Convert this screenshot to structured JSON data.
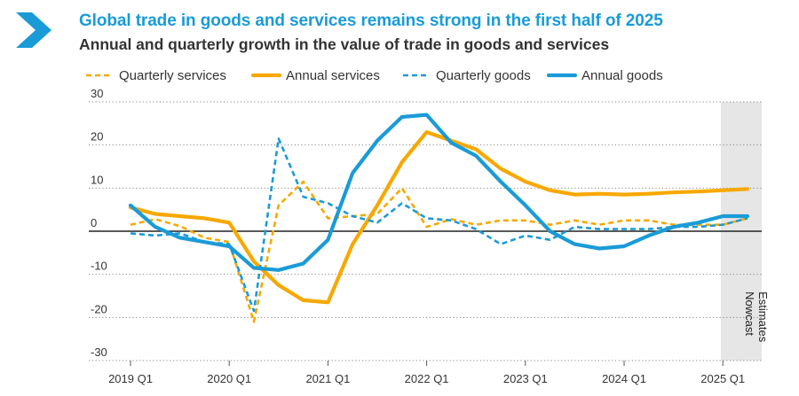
{
  "header": {
    "title": "Global trade in goods and services remains strong in the first half of 2025",
    "subtitle": "Annual and quarterly growth in the value of trade in goods and services"
  },
  "chart_data": {
    "type": "line",
    "title": "Global trade in goods and services remains strong in the first half of 2025",
    "subtitle": "Annual and quarterly growth in the value of trade in goods and services",
    "xlabel": "",
    "ylabel": "",
    "ylim": [
      -30,
      30
    ],
    "yticks": [
      30,
      20,
      10,
      0,
      -10,
      -20,
      -30
    ],
    "xtick_labels": [
      "2019 Q1",
      "2020 Q1",
      "2021 Q1",
      "2022 Q1",
      "2023 Q1",
      "2024 Q1",
      "2025 Q1"
    ],
    "x": [
      "2019 Q1",
      "2019 Q2",
      "2019 Q3",
      "2019 Q4",
      "2020 Q1",
      "2020 Q2",
      "2020 Q3",
      "2020 Q4",
      "2021 Q1",
      "2021 Q2",
      "2021 Q3",
      "2021 Q4",
      "2022 Q1",
      "2022 Q2",
      "2022 Q3",
      "2022 Q4",
      "2023 Q1",
      "2023 Q2",
      "2023 Q3",
      "2023 Q4",
      "2024 Q1",
      "2024 Q2",
      "2024 Q3",
      "2024 Q4",
      "2025 Q1",
      "2025 Q2"
    ],
    "grid": true,
    "legend_position": "top",
    "nowcast_label": "Nowcast Estimates",
    "colors": {
      "services": "#f7a800",
      "goods": "#1a9bd7",
      "zero_line": "#222222"
    },
    "series": [
      {
        "name": "Quarterly services",
        "style": "dashed",
        "color": "#f7a800",
        "values": [
          1.5,
          2.8,
          1.2,
          -1.5,
          -2.5,
          -21,
          6,
          11.5,
          3,
          3.5,
          4,
          10,
          1,
          2.8,
          1.5,
          2.5,
          2.5,
          1.5,
          2.5,
          1.5,
          2.5,
          2.5,
          1.5,
          1.5,
          1.5,
          3
        ]
      },
      {
        "name": "Annual services",
        "style": "solid",
        "color": "#f7a800",
        "values": [
          5.5,
          4,
          3.5,
          3,
          2,
          -7,
          -12.5,
          -16,
          -16.5,
          -3,
          6,
          16,
          23,
          21,
          19,
          14.5,
          11.5,
          9.5,
          8.5,
          8.7,
          8.5,
          8.7,
          9,
          9.2,
          9.5,
          9.8
        ]
      },
      {
        "name": "Quarterly goods",
        "style": "dashed",
        "color": "#1a9bd7",
        "values": [
          -0.5,
          -1,
          -0.5,
          -2.5,
          -3,
          -18.5,
          21.5,
          8,
          6.5,
          3.5,
          2,
          6.5,
          3,
          2.5,
          0.5,
          -3,
          -1,
          -2,
          1,
          0.5,
          0.5,
          0.5,
          1,
          1,
          1.5,
          3
        ]
      },
      {
        "name": "Annual goods",
        "style": "solid",
        "color": "#1a9bd7",
        "values": [
          6,
          1,
          -1.5,
          -2.5,
          -3.5,
          -8.5,
          -9,
          -7.5,
          -2,
          13.5,
          21,
          26.5,
          27,
          20.5,
          17.5,
          11.5,
          6,
          0,
          -3,
          -4,
          -3.5,
          -1,
          1,
          2,
          3.5,
          3.5
        ]
      }
    ]
  }
}
